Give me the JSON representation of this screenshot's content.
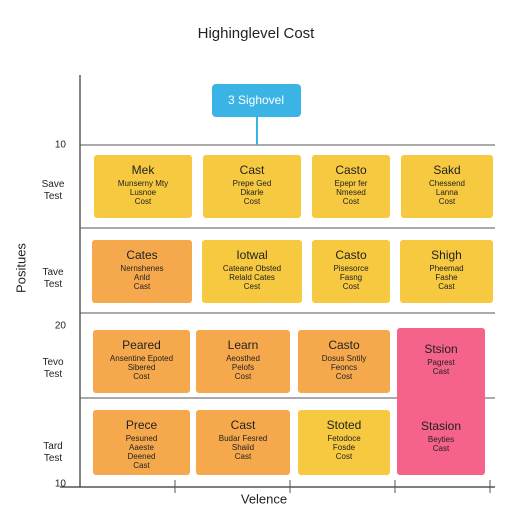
{
  "title": "Highinglevel Cost",
  "callout": "3 Sighovel",
  "y_axis_label": "Positues",
  "x_axis_label": "Velence",
  "y_ticks": [
    "10",
    "20",
    "10"
  ],
  "row_labels": [
    "Save Test",
    "Tave Test",
    "Tevo Test",
    "Tard Test"
  ],
  "cards": [
    {
      "title": "Mek",
      "lines": [
        "Munserny Mty",
        "Lusnoe",
        "Cost"
      ]
    },
    {
      "title": "Cast",
      "lines": [
        "Prepe Ged",
        "Dkarle",
        "Cost"
      ]
    },
    {
      "title": "Casto",
      "lines": [
        "Epepr fer",
        "Nmesed",
        "Cost"
      ]
    },
    {
      "title": "Sakd",
      "lines": [
        "Chessend",
        "Lanna",
        "Cost"
      ]
    },
    {
      "title": "Cates",
      "lines": [
        "Nernshenes",
        "Anld",
        "Cast"
      ]
    },
    {
      "title": "Iotwal",
      "lines": [
        "Cateane Obsted",
        "Relald Cates",
        "Cest"
      ]
    },
    {
      "title": "Casto",
      "lines": [
        "Pisesorce",
        "Fasng",
        "Cost"
      ]
    },
    {
      "title": "Shigh",
      "lines": [
        "Pheemad",
        "Fashe",
        "Cast"
      ]
    },
    {
      "title": "Peared",
      "lines": [
        "Ansentine Epoted",
        "Sibered",
        "Cost"
      ]
    },
    {
      "title": "Learn",
      "lines": [
        "Aeosthed",
        "Pelofs",
        "Cost"
      ]
    },
    {
      "title": "Casto",
      "lines": [
        "Dosus Sntily",
        "Feoncs",
        "Cost"
      ]
    },
    {
      "title": "Prece",
      "lines": [
        "Pesuned",
        "Aaeste",
        "Deened",
        "Cast"
      ]
    },
    {
      "title": "Cast",
      "lines": [
        "Budar Fesred",
        "Shaiid",
        "Cast"
      ]
    },
    {
      "title": "Stoted",
      "lines": [
        "Fetodoce",
        "Fosde",
        "Cost"
      ]
    },
    {
      "title": "Stsion",
      "lines": [
        "Pagrest",
        "Cast"
      ]
    },
    {
      "title": "Stasion",
      "lines": [
        "Beyties",
        "Cast"
      ]
    }
  ]
}
